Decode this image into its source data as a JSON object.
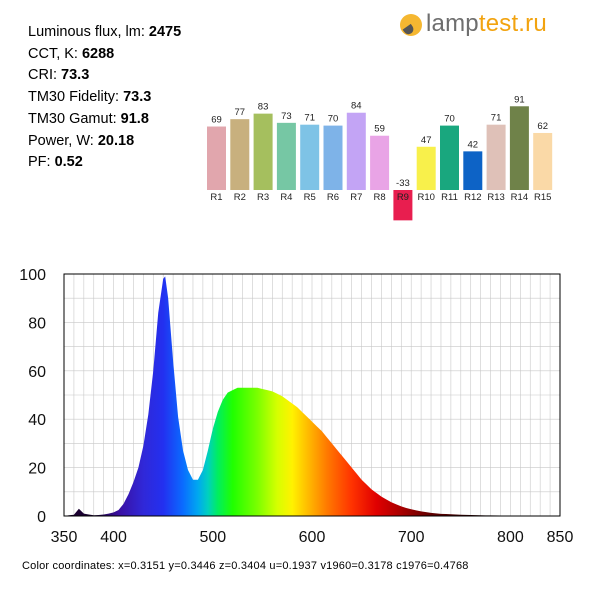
{
  "info": [
    {
      "label": "Luminous flux, lm: ",
      "value": "2475"
    },
    {
      "label": "CCT, K: ",
      "value": "6288"
    },
    {
      "label": "CRI: ",
      "value": "73.3"
    },
    {
      "label": "TM30 Fidelity: ",
      "value": "73.3"
    },
    {
      "label": "TM30 Gamut: ",
      "value": "91.8"
    },
    {
      "label": "Power, W:  ",
      "value": "20.18"
    },
    {
      "label": "PF:  ",
      "value": "0.52"
    }
  ],
  "logo": {
    "part1": "lamp",
    "part2": "test.ru",
    "color1": "#6e6e6e",
    "color2": "#f2a30f",
    "icon": "lightbulb-icon"
  },
  "chart_data": [
    {
      "type": "bar",
      "categories": [
        "R1",
        "R2",
        "R3",
        "R4",
        "R5",
        "R6",
        "R7",
        "R8",
        "R9",
        "R10",
        "R11",
        "R12",
        "R13",
        "R14",
        "R15"
      ],
      "values": [
        69,
        77,
        83,
        73,
        71,
        70,
        84,
        59,
        -33,
        47,
        70,
        42,
        71,
        91,
        62
      ],
      "colors": [
        "#e1a6ad",
        "#c8b07e",
        "#a5bf5e",
        "#76c7a4",
        "#7ec3e6",
        "#7eb3e8",
        "#c3a4f5",
        "#e9a4e6",
        "#e81e4f",
        "#f8f04b",
        "#19a77e",
        "#0d63c6",
        "#dfc1b8",
        "#6f8249",
        "#fad9a7"
      ]
    },
    {
      "type": "area",
      "xlim": [
        350,
        850
      ],
      "ylim": [
        0,
        100
      ],
      "xticks": [
        350,
        400,
        500,
        600,
        700,
        800,
        850
      ],
      "yticks": [
        0,
        20,
        40,
        60,
        80,
        100
      ],
      "x": [
        350,
        355,
        360,
        365,
        370,
        375,
        380,
        385,
        390,
        395,
        400,
        405,
        410,
        415,
        420,
        425,
        430,
        435,
        440,
        445,
        450,
        452,
        455,
        460,
        465,
        470,
        475,
        480,
        485,
        490,
        495,
        500,
        505,
        510,
        515,
        520,
        525,
        530,
        535,
        540,
        545,
        550,
        555,
        560,
        565,
        570,
        575,
        580,
        585,
        590,
        595,
        600,
        605,
        610,
        615,
        620,
        625,
        630,
        635,
        640,
        645,
        650,
        655,
        660,
        665,
        670,
        675,
        680,
        685,
        690,
        695,
        700,
        705,
        710,
        715,
        720,
        725,
        730,
        735,
        740,
        745,
        750,
        755,
        760,
        765,
        770,
        775,
        780,
        790,
        800,
        810,
        820,
        830,
        840,
        850
      ],
      "y": [
        0,
        0.3,
        0.5,
        3,
        1,
        0.6,
        0.3,
        0.4,
        0.6,
        1,
        1.5,
        2.5,
        5,
        9,
        14,
        20,
        29,
        42,
        60,
        84,
        98,
        99,
        90,
        64,
        41,
        27,
        19,
        15,
        15,
        19,
        27,
        36,
        43,
        48,
        51,
        52,
        53,
        53,
        53,
        53,
        53,
        52.5,
        52,
        51.5,
        50.5,
        49.5,
        48,
        46.5,
        45,
        43,
        41,
        39,
        37,
        35,
        32.5,
        30,
        27.5,
        25,
        22.5,
        20,
        17.5,
        15,
        13,
        11,
        9.5,
        8,
        6.8,
        5.7,
        4.8,
        4,
        3.3,
        2.8,
        2.3,
        1.9,
        1.6,
        1.3,
        1.1,
        0.9,
        0.8,
        0.7,
        0.6,
        0.5,
        0.45,
        0.4,
        0.35,
        0.3,
        0.28,
        0.25,
        0.2,
        0.15,
        0.12,
        0.1,
        0.05,
        0.03,
        0
      ]
    }
  ],
  "coordinates": "Color coordinates: x=0.3151 y=0.3446 z=0.3404 u=0.1937 v1960=0.3178 c1976=0.4768"
}
